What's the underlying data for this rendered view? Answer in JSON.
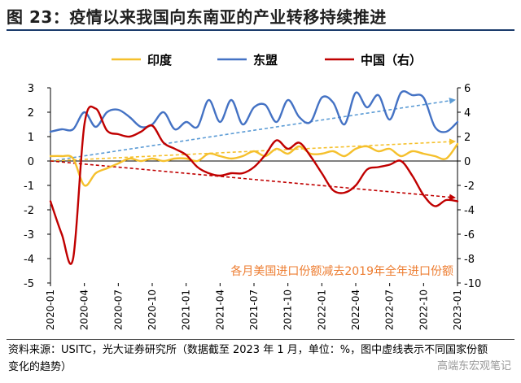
{
  "title": "图 23：疫情以来我国向东南亚的产业转移持续推进",
  "source_note": "资料来源：USITC，光大证券研究所（数据截至 2023 年 1 月，单位：%，图中虚线表示不同国家份额变化的趋势）",
  "watermark": "高端东宏观笔记",
  "chart_data": {
    "type": "line",
    "annotation": "各月美国进口份额减去2019年全年进口份额",
    "x": [
      "2020-01",
      "2020-02",
      "2020-03",
      "2020-04",
      "2020-05",
      "2020-06",
      "2020-07",
      "2020-08",
      "2020-09",
      "2020-10",
      "2020-11",
      "2020-12",
      "2021-01",
      "2021-02",
      "2021-03",
      "2021-04",
      "2021-05",
      "2021-06",
      "2021-07",
      "2021-08",
      "2021-09",
      "2021-10",
      "2021-11",
      "2021-12",
      "2022-01",
      "2022-02",
      "2022-03",
      "2022-04",
      "2022-05",
      "2022-06",
      "2022-07",
      "2022-08",
      "2022-09",
      "2022-10",
      "2022-11",
      "2022-12",
      "2023-01"
    ],
    "tick_labels": [
      "2020-01",
      "2020-04",
      "2020-07",
      "2020-10",
      "2021-01",
      "2021-04",
      "2021-07",
      "2021-10",
      "2022-01",
      "2022-04",
      "2022-07",
      "2022-10",
      "2023-01"
    ],
    "left_axis": {
      "ylim": [
        -5,
        3
      ],
      "ticks": [
        "-5",
        "-4",
        "-3",
        "-2",
        "-1",
        "0",
        "1",
        "2",
        "3"
      ]
    },
    "right_axis": {
      "ylim": [
        -10,
        6
      ],
      "ticks": [
        "-10",
        "-8",
        "-6",
        "-4",
        "-2",
        "0",
        "2",
        "4",
        "6"
      ]
    },
    "series": [
      {
        "name": "印度",
        "axis": "left",
        "color": "#f5c02c",
        "values": [
          0.2,
          0.2,
          0.1,
          -1.0,
          -0.5,
          -0.3,
          -0.1,
          0.1,
          0.0,
          0.1,
          0.0,
          0.1,
          0.1,
          0.0,
          0.3,
          0.2,
          0.1,
          0.2,
          0.4,
          0.2,
          0.5,
          0.3,
          0.6,
          0.3,
          0.3,
          0.4,
          0.2,
          0.5,
          0.6,
          0.4,
          0.5,
          0.2,
          0.4,
          0.3,
          0.2,
          0.1,
          0.7
        ]
      },
      {
        "name": "东盟",
        "axis": "left",
        "color": "#4472c4",
        "values": [
          1.2,
          1.3,
          1.3,
          2.0,
          1.4,
          2.0,
          2.1,
          1.8,
          1.4,
          1.5,
          2.0,
          1.3,
          1.6,
          1.4,
          2.5,
          1.6,
          2.5,
          1.5,
          2.2,
          2.3,
          1.6,
          2.5,
          1.8,
          1.6,
          2.6,
          2.4,
          1.5,
          2.8,
          2.2,
          2.7,
          1.7,
          2.8,
          2.7,
          2.6,
          1.4,
          1.2,
          1.6
        ]
      },
      {
        "name": "中国（右）",
        "axis": "right",
        "color": "#c00000",
        "values": [
          -3.3,
          -6.0,
          -8.0,
          3.0,
          4.3,
          2.5,
          2.2,
          2.0,
          2.4,
          2.9,
          1.5,
          1.0,
          0.5,
          -0.5,
          -1.0,
          -1.2,
          -1.0,
          -1.0,
          -0.5,
          0.5,
          1.7,
          1.0,
          1.5,
          0.4,
          -1.0,
          -2.4,
          -2.6,
          -2.0,
          -0.7,
          -0.5,
          -0.3,
          0.0,
          -1.2,
          -2.8,
          -3.7,
          -3.2,
          -3.3
        ]
      }
    ],
    "trend_lines": [
      {
        "name": "东盟趋势",
        "axis": "left",
        "color": "#5b9bd5",
        "from": 0.0,
        "to": 2.5
      },
      {
        "name": "印度趋势",
        "axis": "left",
        "color": "#f5c02c",
        "from": 0.0,
        "to": 0.8
      },
      {
        "name": "中国趋势",
        "axis": "right",
        "color": "#c00000",
        "from": 0.0,
        "to": -3.0
      }
    ]
  }
}
